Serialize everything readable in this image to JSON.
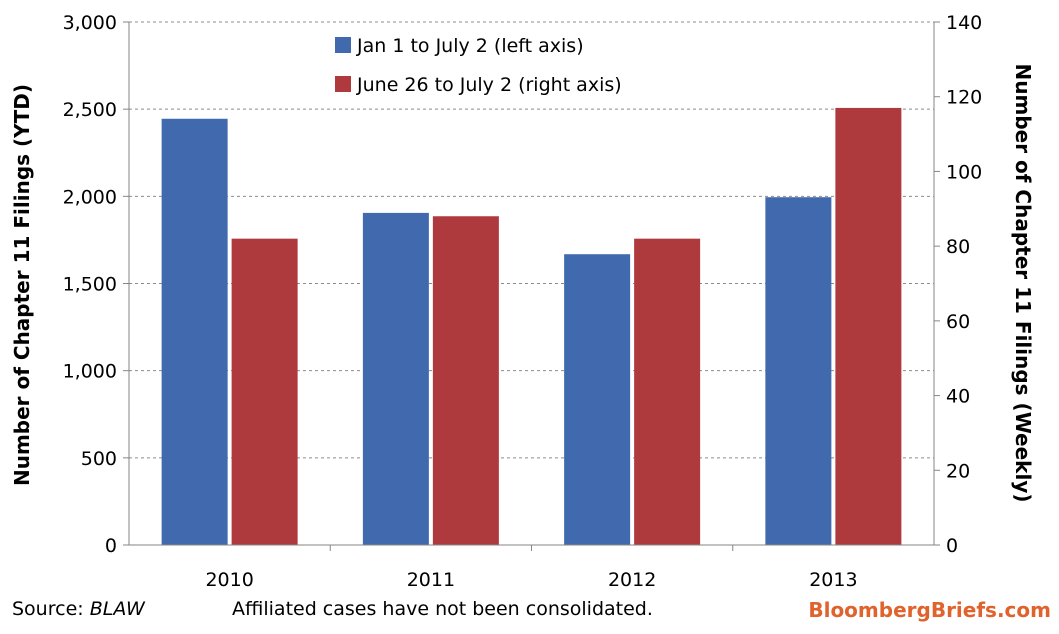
{
  "chart_data": {
    "type": "bar",
    "categories": [
      "2010",
      "2011",
      "2012",
      "2013"
    ],
    "series": [
      {
        "name": "Jan 1 to July 2 (left axis)",
        "axis": "left",
        "color": "#4169ae",
        "values": [
          2445,
          1905,
          1668,
          1995
        ]
      },
      {
        "name": "June 26 to July 2 (right axis)",
        "axis": "right",
        "color": "#ae3a3e",
        "values": [
          82,
          88,
          82,
          117
        ]
      }
    ],
    "y_left": {
      "label": "Number of Chapter 11 Filings (YTD)",
      "ylim": [
        0,
        3000
      ],
      "ticks": [
        "0",
        "500",
        "1,000",
        "1,500",
        "2,000",
        "2,500",
        "3,000"
      ]
    },
    "y_right": {
      "label": "Number of Chapter 11 Filings (Weekly)",
      "ylim": [
        0,
        140
      ],
      "ticks": [
        "0",
        "20",
        "40",
        "60",
        "80",
        "100",
        "120",
        "140"
      ]
    },
    "grid": true,
    "legend_position": "top-center"
  },
  "footer": {
    "source_label": "Source: ",
    "source_name": "BLAW",
    "note": "Affiliated cases have not been consolidated.",
    "brand": "BloombergBriefs.com"
  }
}
